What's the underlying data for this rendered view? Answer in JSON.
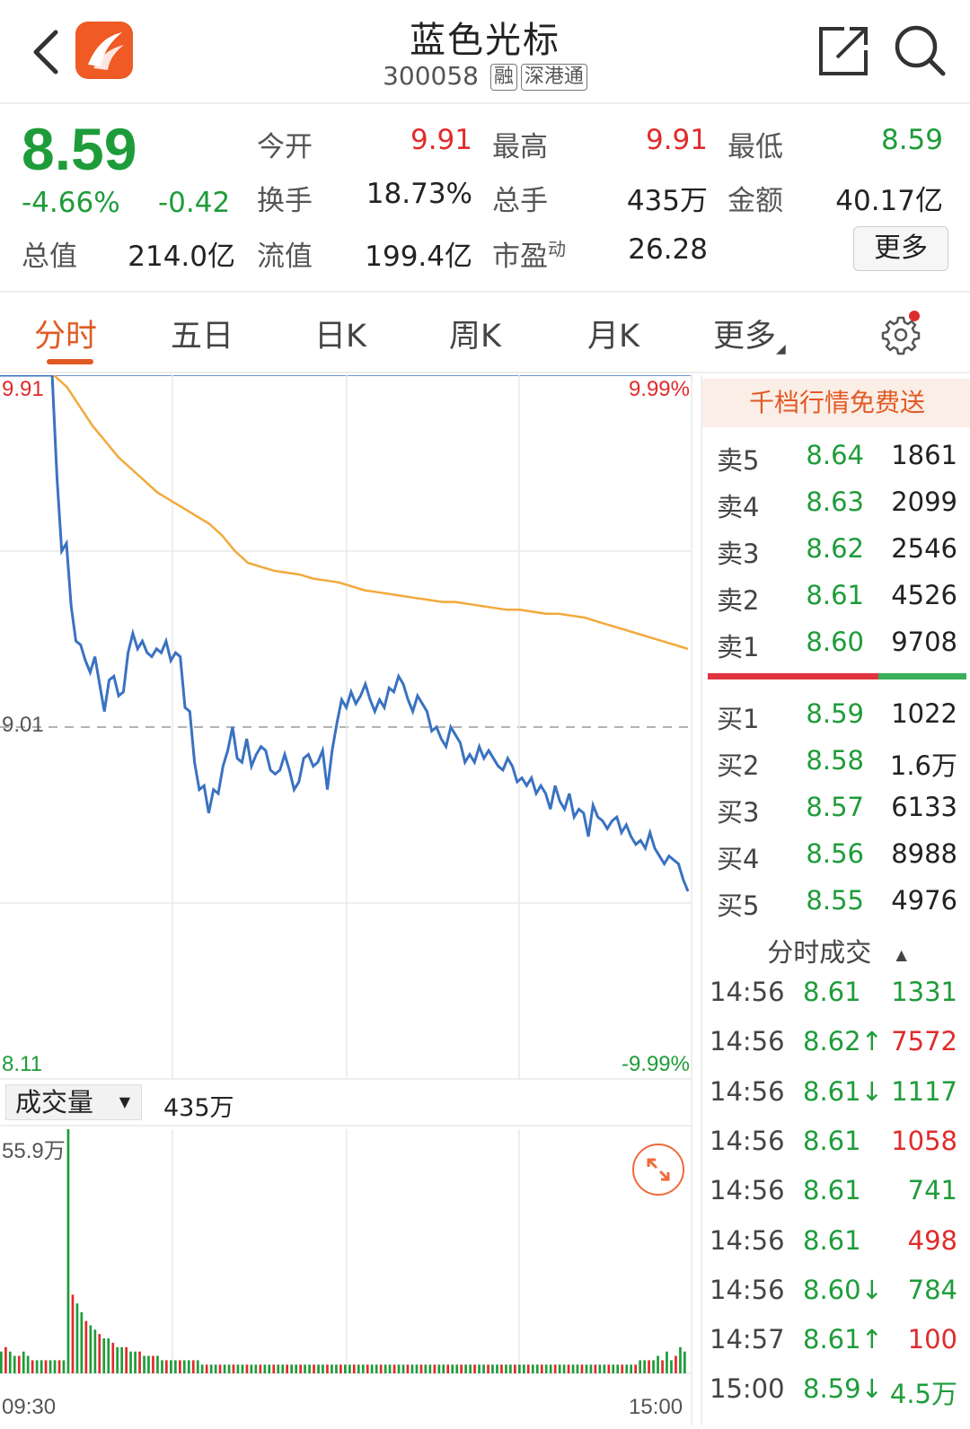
{
  "header": {
    "stock_name": "蓝色光标",
    "stock_code": "300058",
    "tag_margin": "融",
    "tag_connect": "深港通"
  },
  "quote": {
    "price": "8.59",
    "change_pct": "-4.66%",
    "change_abs": "-0.42",
    "open_label": "今开",
    "open_value": "9.91",
    "high_label": "最高",
    "high_value": "9.91",
    "low_label": "最低",
    "low_value": "8.59",
    "turnover_label": "换手",
    "turnover_value": "18.73%",
    "volume_label": "总手",
    "volume_value": "435万",
    "amount_label": "金额",
    "amount_value": "40.17亿",
    "mktcap_label": "总值",
    "mktcap_value": "214.0亿",
    "float_label": "流值",
    "float_value": "199.4亿",
    "pe_label": "市盈",
    "pe_sup": "动",
    "pe_value": "26.28",
    "more_label": "更多"
  },
  "tabs": [
    {
      "label": "分时"
    },
    {
      "label": "五日"
    },
    {
      "label": "日K"
    },
    {
      "label": "周K"
    },
    {
      "label": "月K"
    },
    {
      "label": "更多"
    }
  ],
  "chart": {
    "price_high": "9.91",
    "price_mid": "9.01",
    "price_low": "8.11",
    "pct_high": "9.99%",
    "pct_low": "-9.99%",
    "volume_selector": "成交量",
    "volume_total": "435万",
    "volume_max": "55.9万",
    "time_start": "09:30",
    "time_end": "15:00"
  },
  "colors": {
    "up": "#e02b2b",
    "down": "#1e9c3a",
    "price_line": "#3a72c0",
    "avg_line": "#f2a93b",
    "accent": "#e05a25"
  },
  "chart_data": {
    "type": "line",
    "series": [
      {
        "values": [
          9.91,
          9.91,
          9.91,
          9.91,
          9.91,
          9.91,
          9.91,
          9.91,
          9.91,
          9.91,
          9.91,
          9.91,
          9.65,
          9.46,
          9.48,
          9.32,
          9.23,
          9.22,
          9.18,
          9.15,
          9.19,
          9.12,
          9.05,
          9.13,
          9.14,
          9.09,
          9.1,
          9.2,
          9.25,
          9.21,
          9.23,
          9.2,
          9.19,
          9.21,
          9.2,
          9.23,
          9.18,
          9.2,
          9.19,
          9.06,
          9.05,
          8.92,
          8.85,
          8.86,
          8.79,
          8.85,
          8.84,
          8.91,
          8.95,
          9.01,
          8.93,
          8.92,
          8.98,
          8.91,
          8.94,
          8.96,
          8.95,
          8.9,
          8.89,
          8.9,
          8.94,
          8.9,
          8.85,
          8.87,
          8.93,
          8.94,
          8.91,
          8.92,
          8.95,
          8.85,
          8.95,
          9.02,
          9.08,
          9.06,
          9.1,
          9.07,
          9.09,
          9.12,
          9.08,
          9.05,
          9.08,
          9.06,
          9.11,
          9.1,
          9.14,
          9.12,
          9.08,
          9.05,
          9.09,
          9.07,
          9.05,
          9.0,
          9.01,
          8.98,
          8.96,
          9.01,
          8.99,
          8.97,
          8.92,
          8.94,
          8.92,
          8.96,
          8.93,
          8.95,
          8.93,
          8.91,
          8.9,
          8.93,
          8.91,
          8.87,
          8.88,
          8.86,
          8.88,
          8.84,
          8.86,
          8.84,
          8.8,
          8.86,
          8.82,
          8.8,
          8.84,
          8.78,
          8.8,
          8.79,
          8.73,
          8.81,
          8.78,
          8.77,
          8.75,
          8.77,
          8.78,
          8.74,
          8.76,
          8.73,
          8.71,
          8.72,
          8.7,
          8.74,
          8.7,
          8.68,
          8.66,
          8.68,
          8.67,
          8.66,
          8.62,
          8.59
        ]
      },
      {
        "values": [
          9.91,
          9.88,
          9.83,
          9.78,
          9.74,
          9.7,
          9.67,
          9.64,
          9.61,
          9.59,
          9.57,
          9.55,
          9.53,
          9.5,
          9.46,
          9.43,
          9.42,
          9.41,
          9.405,
          9.4,
          9.39,
          9.385,
          9.38,
          9.37,
          9.36,
          9.355,
          9.35,
          9.345,
          9.34,
          9.335,
          9.33,
          9.33,
          9.325,
          9.32,
          9.315,
          9.31,
          9.31,
          9.305,
          9.3,
          9.3,
          9.295,
          9.29,
          9.28,
          9.27,
          9.26,
          9.25,
          9.24,
          9.23,
          9.22,
          9.21
        ]
      }
    ],
    "ylim": [
      8.11,
      9.91
    ],
    "y_ticks": [
      "9.91",
      "9.01",
      "8.11"
    ],
    "pct_ticks": [
      "9.99%",
      "-9.99%"
    ],
    "x_ticks": [
      "09:30",
      "15:00"
    ],
    "prev_close": 9.01,
    "volume": {
      "max_label": "55.9万",
      "values": [
        5,
        6,
        5,
        4,
        4,
        5,
        4,
        3,
        3,
        3,
        3,
        3,
        3,
        3,
        3,
        55.9,
        18,
        16,
        14,
        12,
        11,
        10,
        9,
        8,
        8,
        7,
        6,
        6,
        6,
        5,
        5,
        5,
        4,
        4,
        4,
        4,
        3,
        3,
        3,
        3,
        3,
        3,
        3,
        3,
        3,
        2,
        2,
        2,
        2,
        2,
        2,
        2,
        2,
        2,
        2,
        2,
        2,
        2,
        2,
        2,
        2,
        2,
        2,
        2,
        2,
        2,
        2,
        2,
        2,
        2,
        2,
        2,
        2,
        2,
        2,
        2,
        2,
        2,
        2,
        2,
        2,
        2,
        2,
        2,
        2,
        2,
        2,
        2,
        2,
        2,
        2,
        2,
        2,
        2,
        2,
        2,
        2,
        2,
        2,
        2,
        2,
        2,
        2,
        2,
        2,
        2,
        2,
        2,
        2,
        2,
        2,
        2,
        2,
        2,
        2,
        2,
        2,
        2,
        2,
        2,
        2,
        2,
        2,
        2,
        2,
        2,
        2,
        2,
        2,
        2,
        2,
        2,
        2,
        2,
        2,
        2,
        2,
        2,
        2,
        2,
        2,
        2,
        2,
        3,
        3,
        3,
        3,
        4,
        3,
        5,
        3,
        4,
        6,
        5
      ]
    },
    "grid": true
  },
  "order_book": {
    "promo": "千档行情免费送",
    "asks": [
      {
        "label": "卖5",
        "price": "8.64",
        "vol": "1861"
      },
      {
        "label": "卖4",
        "price": "8.63",
        "vol": "2099"
      },
      {
        "label": "卖3",
        "price": "8.62",
        "vol": "2546"
      },
      {
        "label": "卖2",
        "price": "8.61",
        "vol": "4526"
      },
      {
        "label": "卖1",
        "price": "8.60",
        "vol": "9708"
      }
    ],
    "bids": [
      {
        "label": "买1",
        "price": "8.59",
        "vol": "1022"
      },
      {
        "label": "买2",
        "price": "8.58",
        "vol": "1.6万"
      },
      {
        "label": "买3",
        "price": "8.57",
        "vol": "6133"
      },
      {
        "label": "买4",
        "price": "8.56",
        "vol": "8988"
      },
      {
        "label": "买5",
        "price": "8.55",
        "vol": "4976"
      }
    ],
    "ticks_header": "分时成交",
    "ticks": [
      {
        "time": "14:56",
        "price": "8.61",
        "arrow": "",
        "vol": "1331",
        "pc": "down",
        "vc": "down"
      },
      {
        "time": "14:56",
        "price": "8.62",
        "arrow": "↑",
        "vol": "7572",
        "pc": "down",
        "vc": "up"
      },
      {
        "time": "14:56",
        "price": "8.61",
        "arrow": "↓",
        "vol": "1117",
        "pc": "down",
        "vc": "down"
      },
      {
        "time": "14:56",
        "price": "8.61",
        "arrow": "",
        "vol": "1058",
        "pc": "down",
        "vc": "up"
      },
      {
        "time": "14:56",
        "price": "8.61",
        "arrow": "",
        "vol": "741",
        "pc": "down",
        "vc": "down"
      },
      {
        "time": "14:56",
        "price": "8.61",
        "arrow": "",
        "vol": "498",
        "pc": "down",
        "vc": "up"
      },
      {
        "time": "14:56",
        "price": "8.60",
        "arrow": "↓",
        "vol": "784",
        "pc": "down",
        "vc": "down"
      },
      {
        "time": "14:57",
        "price": "8.61",
        "arrow": "↑",
        "vol": "100",
        "pc": "down",
        "vc": "up"
      },
      {
        "time": "15:00",
        "price": "8.59",
        "arrow": "↓",
        "vol": "4.5万",
        "pc": "down",
        "vc": "down"
      }
    ]
  }
}
